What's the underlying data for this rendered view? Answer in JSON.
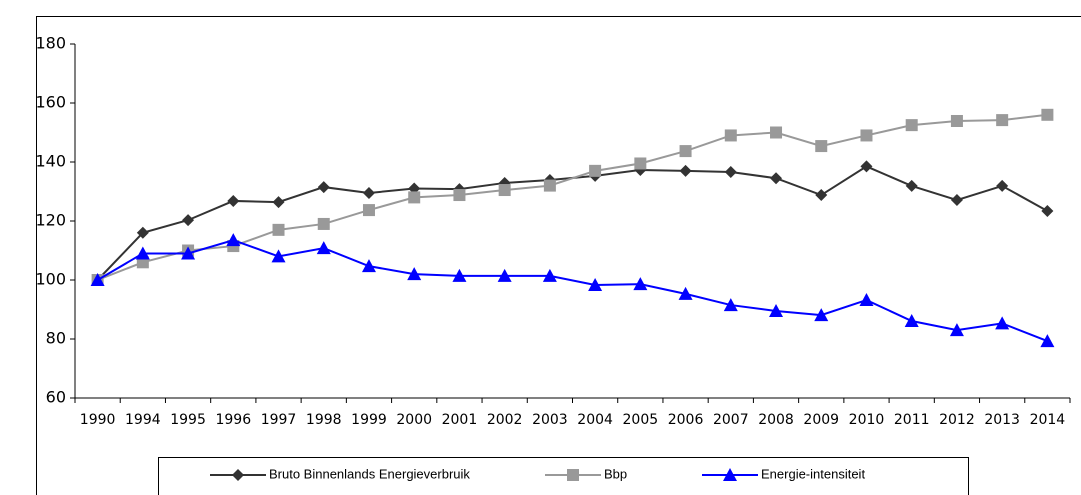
{
  "chart_data": {
    "type": "line",
    "categories": [
      "1990",
      "1994",
      "1995",
      "1996",
      "1997",
      "1998",
      "1999",
      "2000",
      "2001",
      "2002",
      "2003",
      "2004",
      "2005",
      "2006",
      "2007",
      "2008",
      "2009",
      "2010",
      "2011",
      "2012",
      "2013",
      "2014"
    ],
    "series": [
      {
        "name": "Bruto Binnenlands Energieverbruik",
        "color": "#333333",
        "marker": "diamond",
        "values": [
          100,
          116,
          120.3,
          126.8,
          126.4,
          131.5,
          129.5,
          131,
          130.8,
          132.9,
          133.9,
          135.3,
          137.3,
          137,
          136.6,
          134.5,
          128.8,
          138.5,
          131.9,
          127.1,
          131.9,
          123.4
        ]
      },
      {
        "name": "Bbp",
        "color": "#999999",
        "marker": "square",
        "values": [
          100,
          106,
          110,
          111.5,
          117,
          119,
          123.7,
          128,
          128.8,
          130.5,
          132,
          137,
          139.5,
          143.7,
          149,
          150,
          145.4,
          149,
          152.5,
          153.9,
          154.2,
          156
        ]
      },
      {
        "name": "Energie-intensiteit",
        "color": "#0000ff",
        "marker": "triangle",
        "values": [
          100,
          109,
          109,
          113.5,
          108,
          110.8,
          104.7,
          102,
          101.4,
          101.4,
          101.4,
          98.3,
          98.6,
          95.3,
          91.5,
          89.5,
          88.1,
          93.2,
          86.1,
          83,
          85.3,
          79.3
        ]
      }
    ],
    "ylim": [
      60,
      180
    ],
    "yticks": [
      60,
      80,
      100,
      120,
      140,
      160,
      180
    ],
    "grid": false
  }
}
